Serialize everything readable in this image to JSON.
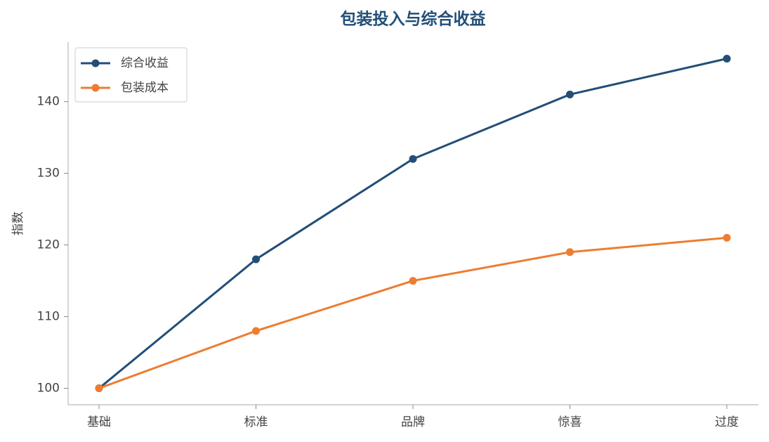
{
  "chart_data": {
    "type": "line",
    "title": "包装投入与综合收益",
    "y_label": "指数",
    "categories": [
      "基础",
      "标准",
      "品牌",
      "惊喜",
      "过度"
    ],
    "series": [
      {
        "name": "综合收益",
        "color": "#224e78",
        "values": [
          100,
          118,
          132,
          141,
          146
        ]
      },
      {
        "name": "包装成本",
        "color": "#ed7d31",
        "values": [
          100,
          108,
          115,
          119,
          121
        ]
      }
    ],
    "ylim": [
      97.7,
      148.3
    ],
    "yticks": [
      100,
      110,
      120,
      130,
      140
    ],
    "grid": false,
    "legend": "upper left"
  }
}
